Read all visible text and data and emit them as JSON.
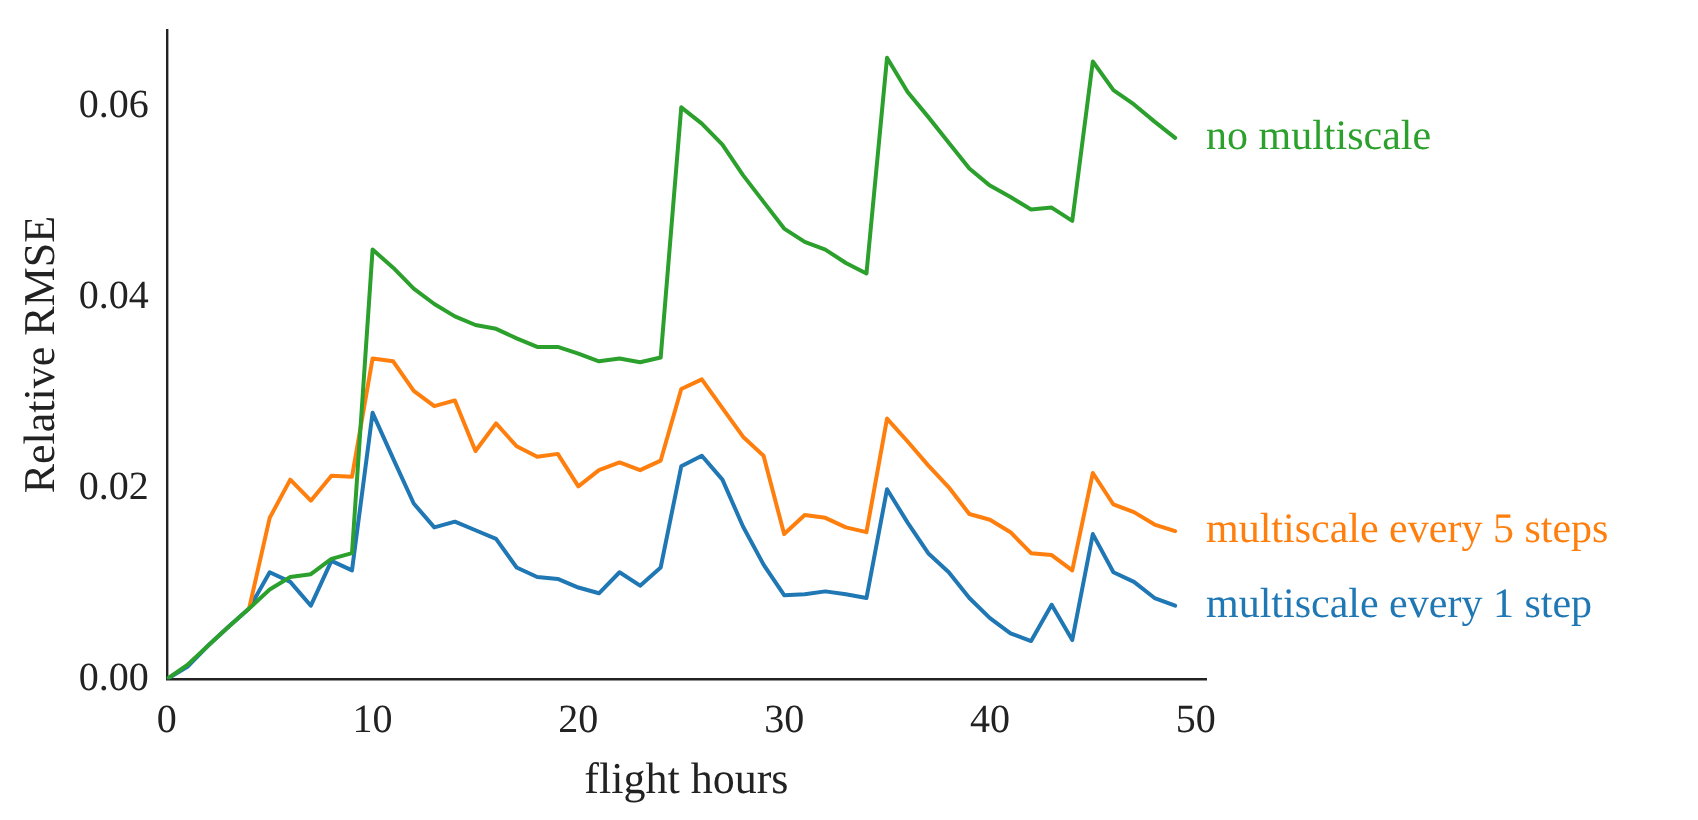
{
  "chart_data": {
    "type": "line",
    "xlabel": "flight hours",
    "ylabel": "Relative RMSE",
    "x": [
      0,
      1,
      2,
      3,
      4,
      5,
      6,
      7,
      8,
      9,
      10,
      11,
      12,
      13,
      14,
      15,
      16,
      17,
      18,
      19,
      20,
      21,
      22,
      23,
      24,
      25,
      26,
      27,
      28,
      29,
      30,
      31,
      32,
      33,
      34,
      35,
      36,
      37,
      38,
      39,
      40,
      41,
      42,
      43,
      44,
      45,
      46,
      47,
      48,
      49
    ],
    "series": [
      {
        "name": "no multiscale",
        "color": "#2ca02c",
        "values": [
          0,
          0.0015,
          0.0035,
          0.0055,
          0.0074,
          0.0094,
          0.0107,
          0.011,
          0.0126,
          0.0132,
          0.045,
          0.0431,
          0.0409,
          0.0393,
          0.038,
          0.0371,
          0.0367,
          0.0357,
          0.0348,
          0.0348,
          0.0341,
          0.0333,
          0.0336,
          0.0332,
          0.0337,
          0.0599,
          0.0582,
          0.056,
          0.0528,
          0.05,
          0.0472,
          0.0458,
          0.045,
          0.0436,
          0.0425,
          0.0651,
          0.0615,
          0.0589,
          0.0562,
          0.0535,
          0.0517,
          0.0505,
          0.0492,
          0.0494,
          0.048,
          0.0647,
          0.0617,
          0.0602,
          0.0584,
          0.0567
        ]
      },
      {
        "name": "multiscale every 5 steps",
        "color": "#ff7f0e",
        "values": [
          null,
          null,
          null,
          null,
          0.0074,
          0.0169,
          0.0209,
          0.0187,
          0.0213,
          0.0212,
          0.0336,
          0.0333,
          0.0302,
          0.0286,
          0.0292,
          0.0239,
          0.0268,
          0.0244,
          0.0233,
          0.0236,
          0.0202,
          0.0219,
          0.0227,
          0.0219,
          0.0229,
          0.0304,
          0.0314,
          0.0284,
          0.0254,
          0.0234,
          0.0152,
          0.0172,
          0.0169,
          0.0159,
          0.0154,
          0.0273,
          0.0249,
          0.0224,
          0.0201,
          0.0173,
          0.0167,
          0.0154,
          0.0132,
          0.013,
          0.0114,
          0.0216,
          0.0183,
          0.0175,
          0.0162,
          0.0155
        ]
      },
      {
        "name": "multiscale every 1 step",
        "color": "#1f77b4",
        "values": [
          0,
          0.0013,
          0.0035,
          0.0055,
          0.0074,
          0.0112,
          0.0102,
          0.0077,
          0.0124,
          0.0114,
          0.0279,
          0.0231,
          0.0184,
          0.0159,
          0.0165,
          0.0156,
          0.0147,
          0.0117,
          0.0107,
          0.0105,
          0.0096,
          0.009,
          0.0112,
          0.0098,
          0.0117,
          0.0223,
          0.0234,
          0.0209,
          0.016,
          0.012,
          0.0088,
          0.0089,
          0.0092,
          0.0089,
          0.0085,
          0.0199,
          0.0164,
          0.0132,
          0.0112,
          0.0085,
          0.0064,
          0.0048,
          0.004,
          0.0078,
          0.0041,
          0.0152,
          0.0112,
          0.0102,
          0.0085,
          0.0077
        ]
      }
    ],
    "xlim": [
      0,
      50.5
    ],
    "xticks": [
      0,
      10,
      20,
      30,
      40,
      50
    ],
    "ylim": [
      0,
      0.068
    ],
    "yticks": [
      {
        "value": 0,
        "label": "0.00"
      },
      {
        "value": 0.02,
        "label": "0.02"
      },
      {
        "value": 0.04,
        "label": "0.04"
      },
      {
        "value": 0.06,
        "label": "0.06"
      }
    ],
    "grid": false,
    "legend": false,
    "marker": "none",
    "line_style": "solid"
  }
}
